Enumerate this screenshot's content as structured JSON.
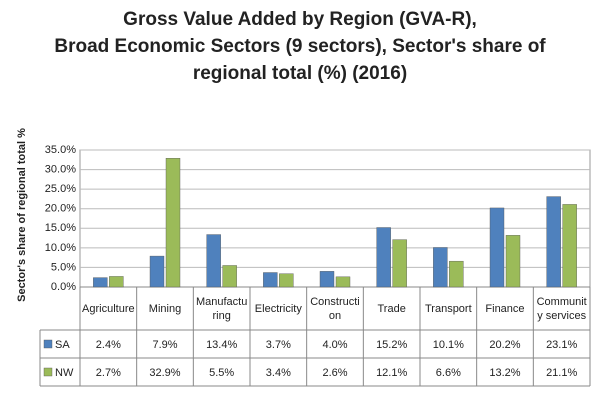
{
  "chart_data": {
    "type": "bar",
    "title": [
      "Gross Value Added by Region (GVA-R),",
      "Broad Economic Sectors (9 sectors), Sector's share of",
      "regional total (%) (2016)"
    ],
    "y_label": "Sector's share of regional total %",
    "categories": [
      "Agriculture",
      "Mining",
      "Manufacturing",
      "Electricity",
      "Construction",
      "Trade",
      "Transport",
      "Finance",
      "Community services"
    ],
    "series": [
      {
        "name": "SA",
        "color": "#4f81bd",
        "values": [
          2.4,
          7.9,
          13.4,
          3.7,
          4.0,
          15.2,
          10.1,
          20.2,
          23.1
        ],
        "value_labels": [
          "2.4%",
          "7.9%",
          "13.4%",
          "3.7%",
          "4.0%",
          "15.2%",
          "10.1%",
          "20.2%",
          "23.1%"
        ]
      },
      {
        "name": "NW",
        "color": "#9bbb59",
        "values": [
          2.7,
          32.9,
          5.5,
          3.4,
          2.6,
          12.1,
          6.6,
          13.2,
          21.1
        ],
        "value_labels": [
          "2.7%",
          "32.9%",
          "5.5%",
          "3.4%",
          "2.6%",
          "12.1%",
          "6.6%",
          "13.2%",
          "21.1%"
        ]
      }
    ],
    "ylim": [
      0,
      35
    ],
    "yticks": [
      {
        "value": 0,
        "label": "0.0%"
      },
      {
        "value": 5,
        "label": "5.0%"
      },
      {
        "value": 10,
        "label": "10.0%"
      },
      {
        "value": 15,
        "label": "15.0%"
      },
      {
        "value": 20,
        "label": "20.0%"
      },
      {
        "value": 25,
        "label": "25.0%"
      },
      {
        "value": 30,
        "label": "30.0%"
      },
      {
        "value": 35,
        "label": "35.0%"
      }
    ],
    "grid": true
  }
}
